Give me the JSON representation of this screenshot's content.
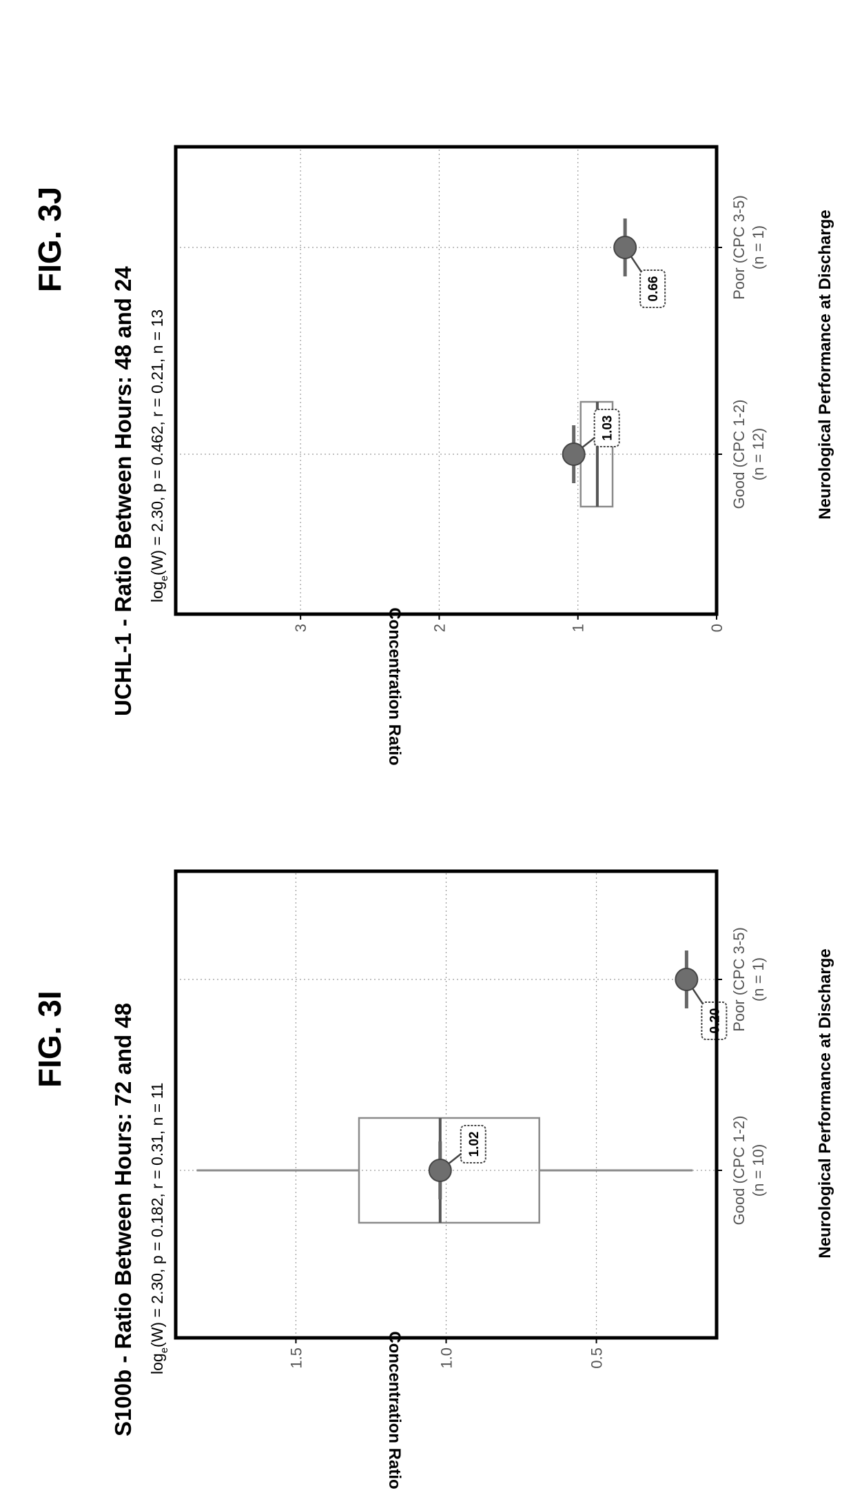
{
  "figures": [
    {
      "label": "FIG. 3I"
    },
    {
      "label": "FIG. 3J"
    }
  ],
  "colors": {
    "marker": "#6e6e6e",
    "box": "#8a8a8a",
    "grid": "#9a9a9a",
    "frame": "#000000"
  },
  "chart_data": [
    {
      "type": "box",
      "title": "S100b - Ratio Between Hours: 72 and 48",
      "stats_prefix": "log",
      "stats_subscript": "e",
      "stats_text": "(W) = 2.30, p = 0.182, r = 0.31, n = 11",
      "xlabel": "Neurological Performance at Discharge",
      "ylabel": "Concentration Ratio",
      "categories": [
        {
          "name": "Good (CPC 1-2)",
          "n_label": "(n = 10)"
        },
        {
          "name": "Poor (CPC 3-5)",
          "n_label": "(n = 1)"
        }
      ],
      "ylim": [
        0.1,
        1.9
      ],
      "yticks": [
        0.5,
        1.0,
        1.5
      ],
      "ytick_labels": [
        "0.5",
        "1.0",
        "1.5"
      ],
      "grid": true,
      "boxes": [
        {
          "q1": 0.69,
          "median": 1.02,
          "q3": 1.29,
          "whisker_low": 0.18,
          "whisker_high": 1.83
        },
        null
      ],
      "points": [
        {
          "value": 1.02,
          "label": "1.02"
        },
        {
          "value": 0.2,
          "label": "0.20"
        }
      ]
    },
    {
      "type": "box",
      "title": "UCHL-1 - Ratio Between Hours: 48 and 24",
      "stats_prefix": "log",
      "stats_subscript": "e",
      "stats_text": "(W) = 2.30, p = 0.462, r = 0.21, n = 13",
      "xlabel": "Neurological Performance at Discharge",
      "ylabel": "Concentration Ratio",
      "categories": [
        {
          "name": "Good (CPC 1-2)",
          "n_label": "(n = 12)"
        },
        {
          "name": "Poor (CPC 3-5)",
          "n_label": "(n = 1)"
        }
      ],
      "ylim": [
        0,
        3.9
      ],
      "yticks": [
        0,
        1,
        2,
        3
      ],
      "ytick_labels": [
        "0",
        "1",
        "2",
        "3"
      ],
      "grid": true,
      "boxes": [
        {
          "q1": 0.75,
          "median": 0.86,
          "q3": 0.98,
          "whisker_low": 0.75,
          "whisker_high": 0.98
        },
        null
      ],
      "points": [
        {
          "value": 1.03,
          "label": "1.03"
        },
        {
          "value": 0.66,
          "label": "0.66"
        }
      ]
    }
  ]
}
